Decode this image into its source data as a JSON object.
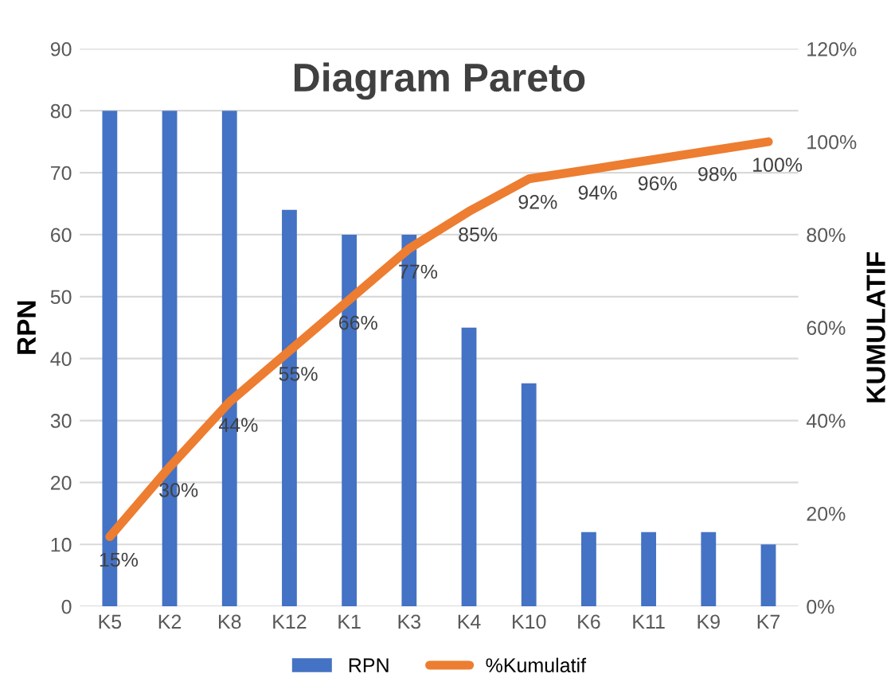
{
  "chart_data": {
    "type": "bar",
    "title": "Diagram Pareto",
    "ylabel": "RPN",
    "y2label": "KUMULATIF",
    "categories": [
      "K5",
      "K2",
      "K8",
      "K12",
      "K1",
      "K3",
      "K4",
      "K10",
      "K6",
      "K11",
      "K9",
      "K7"
    ],
    "series": [
      {
        "name": "RPN",
        "color": "#4472c4",
        "values": [
          80,
          80,
          80,
          64,
          60,
          60,
          45,
          36,
          12,
          12,
          12,
          10
        ]
      },
      {
        "name": "%Kumulatif",
        "type": "line",
        "axis": "y2",
        "color": "#ed7d31",
        "values": [
          15,
          30,
          44,
          55,
          66,
          77,
          85,
          92,
          94,
          96,
          98,
          100
        ],
        "value_labels": [
          "15%",
          "30%",
          "44%",
          "55%",
          "66%",
          "77%",
          "85%",
          "92%",
          "94%",
          "96%",
          "98%",
          "100%"
        ]
      }
    ],
    "ylim": [
      0,
      90
    ],
    "yticks": [
      0,
      10,
      20,
      30,
      40,
      50,
      60,
      70,
      80,
      90
    ],
    "y2lim": [
      0,
      120
    ],
    "y2ticks": [
      {
        "value": 0,
        "label": "0%"
      },
      {
        "value": 20,
        "label": "20%"
      },
      {
        "value": 40,
        "label": "40%"
      },
      {
        "value": 60,
        "label": "60%"
      },
      {
        "value": 80,
        "label": "80%"
      },
      {
        "value": 100,
        "label": "100%"
      },
      {
        "value": 120,
        "label": "120%"
      }
    ],
    "grid": "y",
    "legend": "bottom",
    "marker": "none",
    "line_style": "solid"
  }
}
